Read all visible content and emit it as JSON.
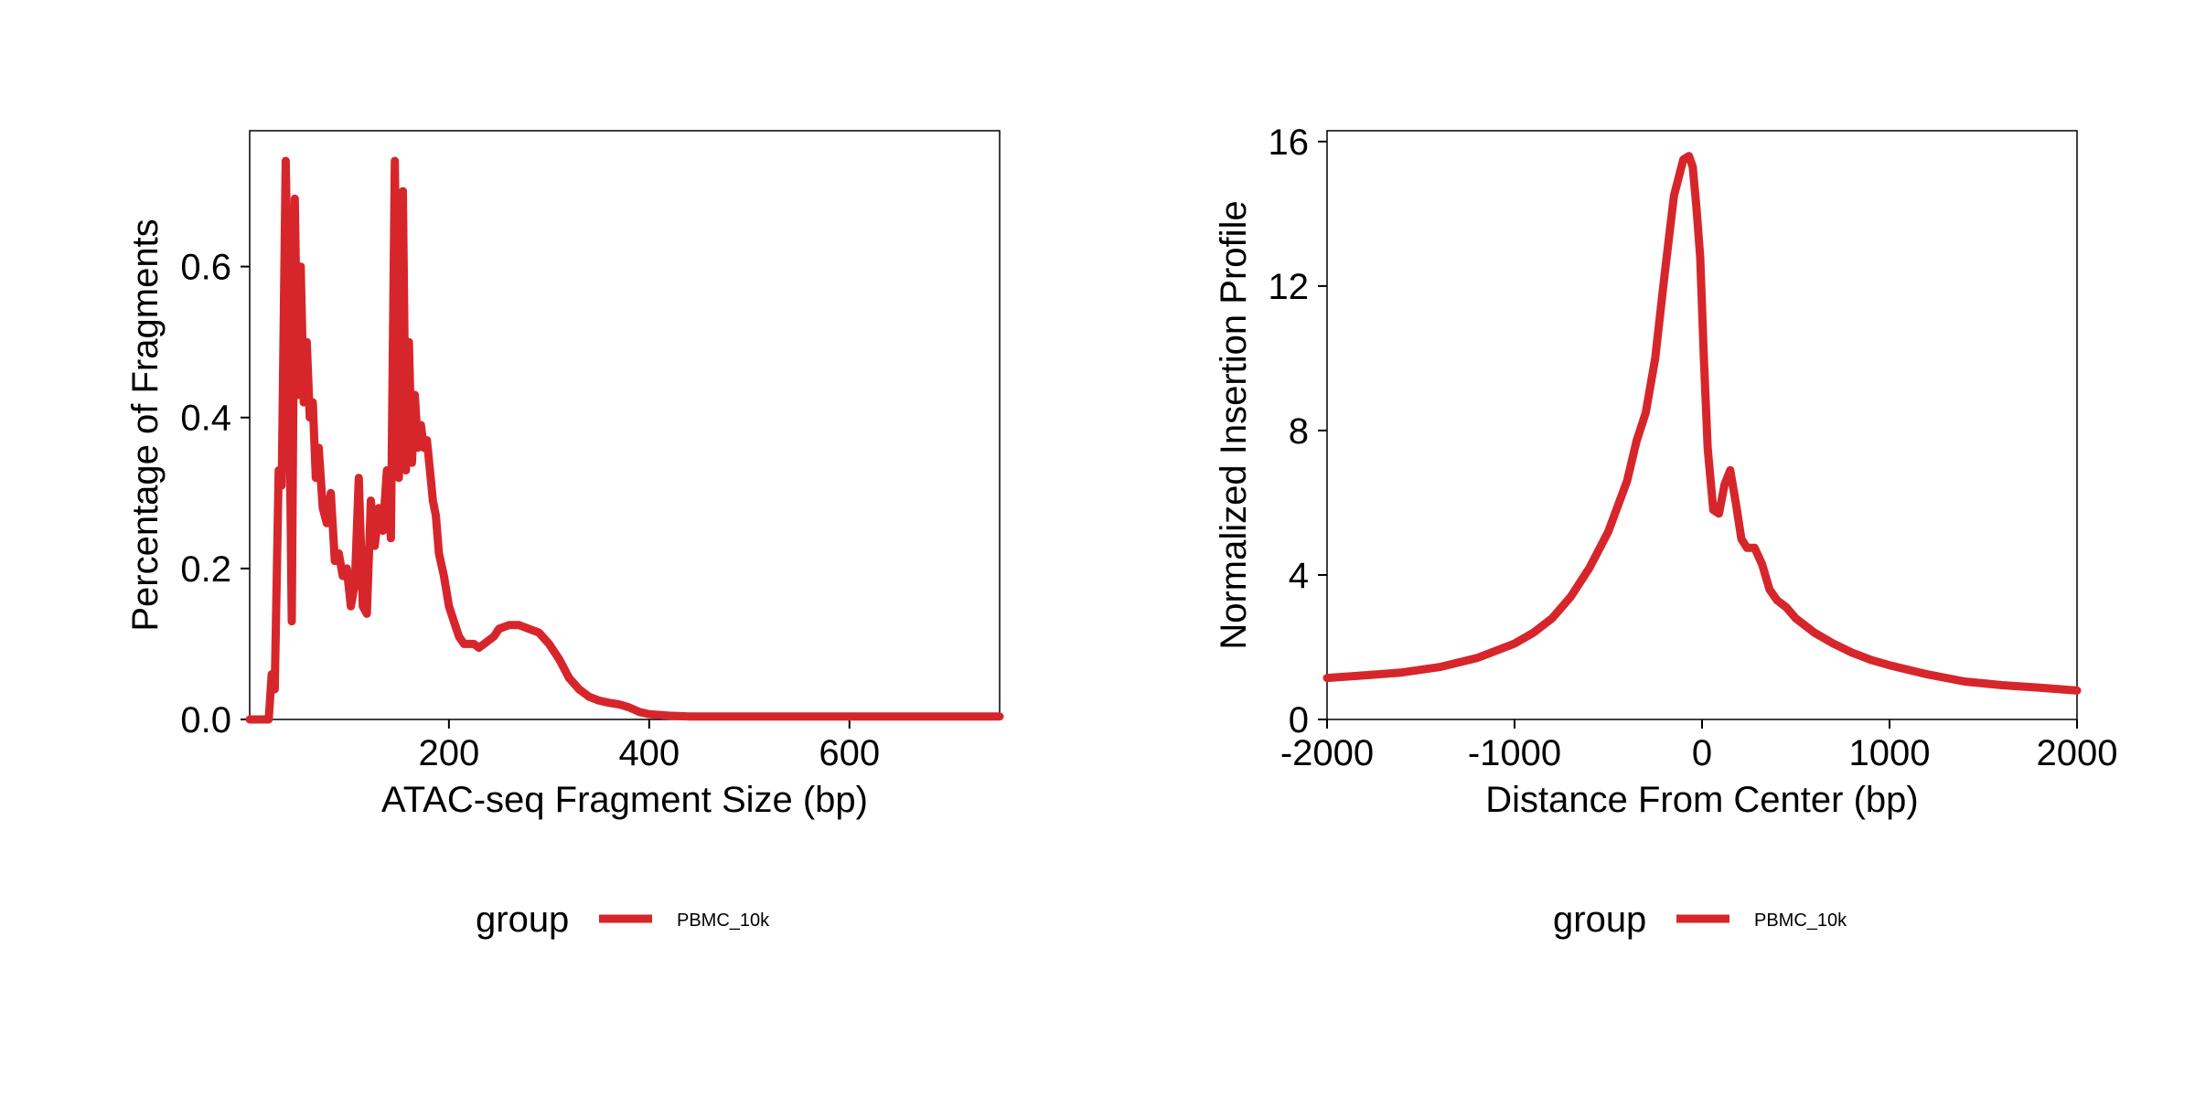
{
  "chart_data": [
    {
      "type": "line",
      "title": "",
      "xlabel": "ATAC-seq Fragment Size (bp)",
      "ylabel": "Percentage of Fragments",
      "xlim": [
        1,
        750
      ],
      "ylim": [
        0,
        0.78
      ],
      "x_ticks": [
        200,
        400,
        600
      ],
      "x_tick_labels": [
        "200",
        "400",
        "600"
      ],
      "y_ticks": [
        0,
        0.2,
        0.4,
        0.6
      ],
      "y_tick_labels": [
        "0.0",
        "0.2",
        "0.4",
        "0.6"
      ],
      "grid": false,
      "legend": {
        "title": "group",
        "position": "bottom",
        "entries": [
          "PBMC_10k"
        ]
      },
      "series": [
        {
          "name": "PBMC_10k",
          "color": "#d7262b",
          "x": [
            1,
            20,
            23,
            26,
            30,
            33,
            37,
            40,
            43,
            46,
            49,
            52,
            55,
            58,
            61,
            64,
            67,
            70,
            74,
            78,
            82,
            86,
            90,
            94,
            98,
            102,
            106,
            110,
            114,
            118,
            122,
            126,
            130,
            134,
            138,
            142,
            146,
            150,
            154,
            157,
            160,
            163,
            166,
            169,
            172,
            175,
            178,
            181,
            184,
            187,
            190,
            195,
            200,
            205,
            210,
            215,
            220,
            225,
            230,
            235,
            240,
            245,
            250,
            260,
            270,
            280,
            290,
            300,
            310,
            320,
            330,
            340,
            350,
            360,
            370,
            380,
            390,
            400,
            420,
            440,
            460,
            480,
            500,
            550,
            600,
            650,
            700,
            750
          ],
          "y": [
            0,
            0,
            0.06,
            0.04,
            0.33,
            0.31,
            0.74,
            0.5,
            0.13,
            0.69,
            0.43,
            0.6,
            0.42,
            0.5,
            0.4,
            0.42,
            0.32,
            0.36,
            0.28,
            0.26,
            0.3,
            0.21,
            0.22,
            0.19,
            0.2,
            0.15,
            0.18,
            0.32,
            0.15,
            0.14,
            0.29,
            0.23,
            0.28,
            0.25,
            0.33,
            0.24,
            0.74,
            0.32,
            0.7,
            0.33,
            0.5,
            0.34,
            0.43,
            0.36,
            0.39,
            0.36,
            0.37,
            0.33,
            0.29,
            0.27,
            0.22,
            0.19,
            0.15,
            0.13,
            0.11,
            0.1,
            0.1,
            0.1,
            0.095,
            0.1,
            0.105,
            0.11,
            0.12,
            0.125,
            0.125,
            0.12,
            0.115,
            0.1,
            0.08,
            0.055,
            0.04,
            0.03,
            0.025,
            0.022,
            0.02,
            0.016,
            0.01,
            0.007,
            0.005,
            0.004,
            0.004,
            0.004,
            0.004,
            0.004,
            0.004,
            0.004,
            0.004,
            0.004
          ]
        }
      ]
    },
    {
      "type": "line",
      "title": "",
      "xlabel": "Distance From Center (bp)",
      "ylabel": "Normalized Insertion Profile",
      "xlim": [
        -2000,
        2000
      ],
      "ylim": [
        0,
        16.3
      ],
      "x_ticks": [
        -2000,
        -1000,
        0,
        1000,
        2000
      ],
      "x_tick_labels": [
        "-2000",
        "-1000",
        "0",
        "1000",
        "2000"
      ],
      "y_ticks": [
        0,
        4,
        8,
        12,
        16
      ],
      "y_tick_labels": [
        "0",
        "4",
        "8",
        "12",
        "16"
      ],
      "grid": false,
      "legend": {
        "title": "group",
        "position": "bottom",
        "entries": [
          "PBMC_10k"
        ]
      },
      "series": [
        {
          "name": "PBMC_10k",
          "color": "#d7262b",
          "x": [
            -2000,
            -1800,
            -1600,
            -1400,
            -1200,
            -1000,
            -900,
            -800,
            -700,
            -600,
            -500,
            -400,
            -350,
            -300,
            -250,
            -200,
            -150,
            -100,
            -70,
            -50,
            -30,
            -10,
            10,
            30,
            60,
            90,
            120,
            150,
            180,
            210,
            240,
            280,
            320,
            360,
            400,
            450,
            500,
            550,
            600,
            700,
            800,
            900,
            1000,
            1200,
            1400,
            1600,
            1800,
            2000
          ],
          "y": [
            1.15,
            1.22,
            1.3,
            1.45,
            1.7,
            2.1,
            2.4,
            2.8,
            3.4,
            4.2,
            5.2,
            6.6,
            7.7,
            8.5,
            10.0,
            12.3,
            14.5,
            15.5,
            15.6,
            15.3,
            14.2,
            12.8,
            10.0,
            7.5,
            5.8,
            5.7,
            6.5,
            6.9,
            6.0,
            5.0,
            4.75,
            4.75,
            4.3,
            3.6,
            3.3,
            3.1,
            2.8,
            2.6,
            2.4,
            2.1,
            1.85,
            1.65,
            1.5,
            1.25,
            1.05,
            0.95,
            0.88,
            0.8
          ]
        }
      ]
    }
  ]
}
